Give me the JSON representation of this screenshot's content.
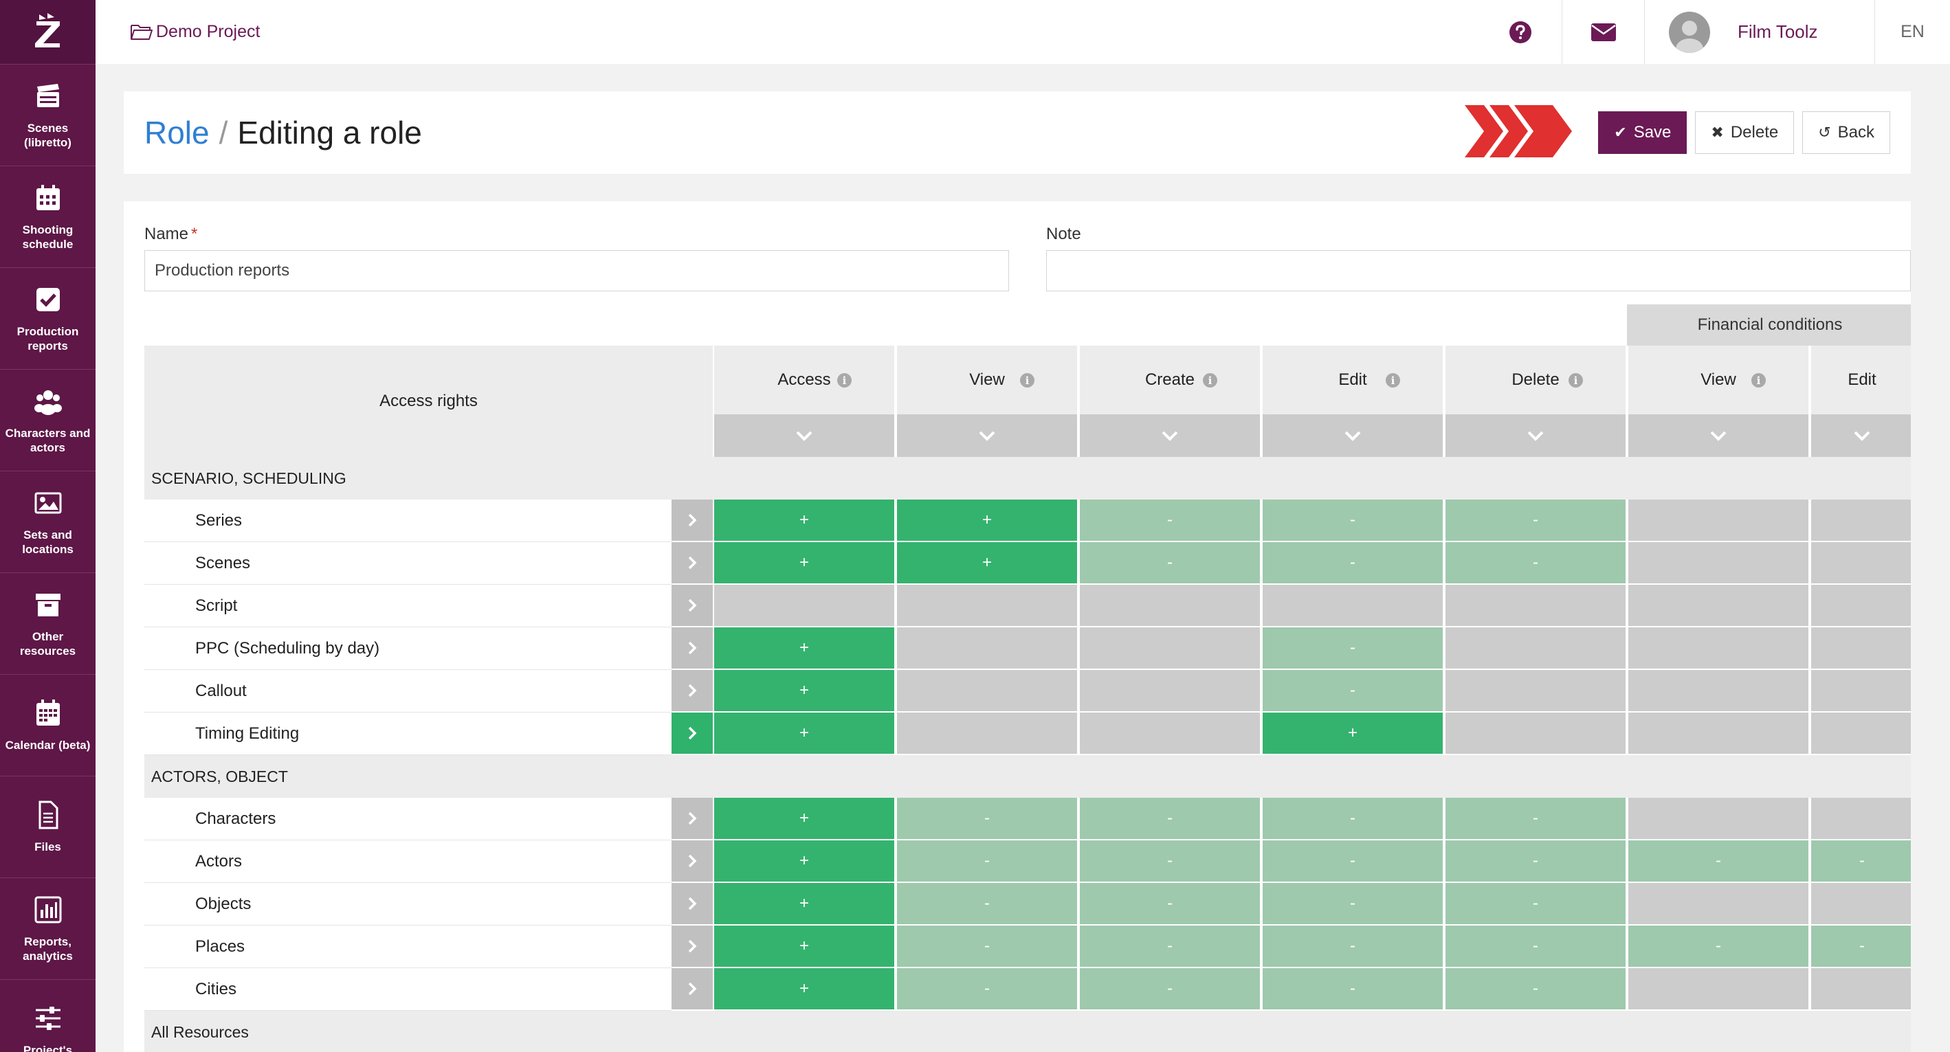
{
  "app": {
    "logo": "Z"
  },
  "sidebar": {
    "items": [
      {
        "label": "Scenes (libretto)",
        "icon": "clapperboard-icon"
      },
      {
        "label": "Shooting schedule",
        "icon": "calendar-icon"
      },
      {
        "label": "Production reports",
        "icon": "checkbox-icon"
      },
      {
        "label": "Characters and actors",
        "icon": "users-icon"
      },
      {
        "label": "Sets and locations",
        "icon": "image-icon"
      },
      {
        "label": "Other resources",
        "icon": "archive-icon"
      },
      {
        "label": "Calendar (beta)",
        "icon": "calendar-grid-icon"
      },
      {
        "label": "Files",
        "icon": "file-icon"
      },
      {
        "label": "Reports, analytics",
        "icon": "bar-chart-icon"
      },
      {
        "label": "Project's",
        "icon": "sliders-icon"
      }
    ]
  },
  "topbar": {
    "project": "Demo Project",
    "user_name": "Film Toolz",
    "language": "EN"
  },
  "header": {
    "crumb": "Role",
    "separator": "/",
    "title": "Editing a role",
    "save_label": "Save",
    "delete_label": "Delete",
    "back_label": "Back"
  },
  "form": {
    "name_label": "Name",
    "required_mark": "*",
    "name_value": "Production reports",
    "note_label": "Note",
    "note_value": ""
  },
  "table": {
    "access_rights_label": "Access rights",
    "group_header": "Financial conditions",
    "info_glyph": "i",
    "columns": [
      "Access",
      "View",
      "Create",
      "Edit",
      "Delete",
      "View",
      "Edit"
    ],
    "sections": [
      {
        "title": "SCENARIO, SCHEDULING",
        "rows": [
          {
            "label": "Series",
            "cells": [
              "+",
              "+",
              "-",
              "-",
              "-",
              "",
              ""
            ],
            "states": [
              "on",
              "on",
              "part",
              "part",
              "part",
              "off",
              "off"
            ]
          },
          {
            "label": "Scenes",
            "cells": [
              "+",
              "+",
              "-",
              "-",
              "-",
              "",
              ""
            ],
            "states": [
              "on",
              "on",
              "part",
              "part",
              "part",
              "off",
              "off"
            ]
          },
          {
            "label": "Script",
            "cells": [
              "",
              "",
              "",
              "",
              "",
              "",
              ""
            ],
            "states": [
              "off",
              "off",
              "off",
              "off",
              "off",
              "off",
              "off"
            ]
          },
          {
            "label": "PPC (Scheduling by day)",
            "cells": [
              "+",
              "",
              "",
              "-",
              "",
              "",
              ""
            ],
            "states": [
              "on",
              "off",
              "off",
              "part",
              "off",
              "off",
              "off"
            ]
          },
          {
            "label": "Callout",
            "cells": [
              "+",
              "",
              "",
              "-",
              "",
              "",
              ""
            ],
            "states": [
              "on",
              "off",
              "off",
              "part",
              "off",
              "off",
              "off"
            ]
          },
          {
            "label": "Timing Editing",
            "cells": [
              "+",
              "",
              "",
              "+",
              "",
              "",
              ""
            ],
            "states": [
              "on",
              "off",
              "off",
              "on",
              "off",
              "off",
              "off"
            ],
            "active": true
          }
        ]
      },
      {
        "title": "ACTORS, OBJECT",
        "rows": [
          {
            "label": "Characters",
            "cells": [
              "+",
              "-",
              "-",
              "-",
              "-",
              "",
              ""
            ],
            "states": [
              "on",
              "part",
              "part",
              "part",
              "part",
              "off",
              "off"
            ]
          },
          {
            "label": "Actors",
            "cells": [
              "+",
              "-",
              "-",
              "-",
              "-",
              "-",
              "-"
            ],
            "states": [
              "on",
              "part",
              "part",
              "part",
              "part",
              "part",
              "part"
            ]
          },
          {
            "label": "Objects",
            "cells": [
              "+",
              "-",
              "-",
              "-",
              "-",
              "",
              ""
            ],
            "states": [
              "on",
              "part",
              "part",
              "part",
              "part",
              "off",
              "off"
            ]
          },
          {
            "label": "Places",
            "cells": [
              "+",
              "-",
              "-",
              "-",
              "-",
              "-",
              "-"
            ],
            "states": [
              "on",
              "part",
              "part",
              "part",
              "part",
              "part",
              "part"
            ]
          },
          {
            "label": "Cities",
            "cells": [
              "+",
              "-",
              "-",
              "-",
              "-",
              "",
              ""
            ],
            "states": [
              "on",
              "part",
              "part",
              "part",
              "part",
              "off",
              "off"
            ]
          }
        ]
      },
      {
        "title": "All Resources",
        "rows": []
      }
    ]
  },
  "colors": {
    "brand": "#5e1747",
    "accent": "#6b1a55",
    "link": "#2f7fd3",
    "on": "#34b36e",
    "partial": "#9ec9ad",
    "off": "#cccccc",
    "arrow": "#e03030"
  }
}
